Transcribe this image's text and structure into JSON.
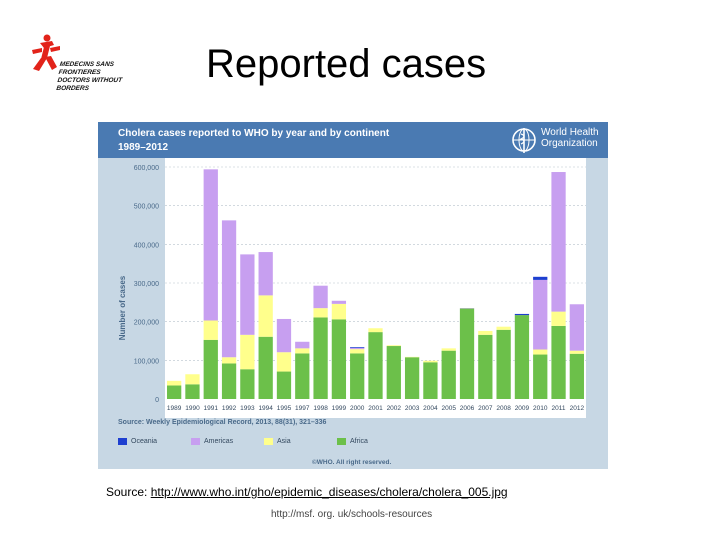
{
  "logo": {
    "line1": "MEDECINS SANS FRONTIERES",
    "line2": "DOCTORS WITHOUT BORDERS",
    "color": "#e2231a"
  },
  "slide": {
    "title": "Reported cases",
    "caption_prefix": "Source: ",
    "caption_link": "http://www.who.int/gho/epidemic_diseases/cholera/cholera_005.jpg",
    "footer": "http://msf. org. uk/schools-resources"
  },
  "figure": {
    "title": "Cholera cases reported to WHO by year and by continent",
    "subtitle": "1989–2012",
    "org_line1": "World Health",
    "org_line2": "Organization",
    "source_note": "Source: Weekly Epidemiological Record, 2013, 88(31), 321–336",
    "copyright": "©WHO. All right reserved."
  },
  "chart_data": {
    "type": "bar",
    "stacked": true,
    "title": "Cholera cases reported to WHO by year and by continent",
    "subtitle": "1989–2012",
    "xlabel": "",
    "ylabel": "Number of cases",
    "ylim": [
      0,
      600000
    ],
    "yticks": [
      0,
      100000,
      200000,
      300000,
      400000,
      500000,
      600000
    ],
    "ytick_labels": [
      "0",
      "100,000",
      "200,000",
      "300,000",
      "400,000",
      "500,000",
      "600,000"
    ],
    "grid": true,
    "categories": [
      "1989",
      "1990",
      "1991",
      "1992",
      "1993",
      "1994",
      "1995",
      "1997",
      "1998",
      "1999",
      "2000",
      "2001",
      "2002",
      "2003",
      "2004",
      "2005",
      "2006",
      "2007",
      "2008",
      "2009",
      "2010",
      "2011",
      "2012"
    ],
    "series": [
      {
        "name": "Africa",
        "color": "#6cc04a",
        "values": [
          35000,
          38000,
          153000,
          92000,
          77000,
          161000,
          71000,
          118000,
          211000,
          206000,
          118000,
          173000,
          137000,
          108000,
          95000,
          125000,
          234000,
          166000,
          179000,
          217000,
          115000,
          189000,
          117000
        ]
      },
      {
        "name": "Asia",
        "color": "#ffff8c",
        "values": [
          12000,
          26000,
          50000,
          16000,
          89000,
          107000,
          50000,
          13000,
          24000,
          40000,
          11000,
          10000,
          2000,
          1000,
          4000,
          6000,
          0,
          10000,
          8000,
          0,
          13000,
          37000,
          8000
        ]
      },
      {
        "name": "Americas",
        "color": "#c79ff0",
        "values": [
          0,
          0,
          391000,
          354000,
          208000,
          112000,
          86000,
          17000,
          58000,
          8000,
          3000,
          0,
          0,
          0,
          0,
          0,
          1000,
          0,
          0,
          0,
          180000,
          361000,
          120000
        ]
      },
      {
        "name": "Oceania",
        "color": "#1e3fd0",
        "values": [
          0,
          0,
          0,
          0,
          0,
          0,
          0,
          0,
          0,
          0,
          2000,
          0,
          0,
          0,
          0,
          0,
          0,
          0,
          0,
          3000,
          8000,
          0,
          0
        ]
      }
    ],
    "legend_position": "bottom",
    "legend": [
      "Oceania",
      "Americas",
      "Asia",
      "Africa"
    ]
  }
}
